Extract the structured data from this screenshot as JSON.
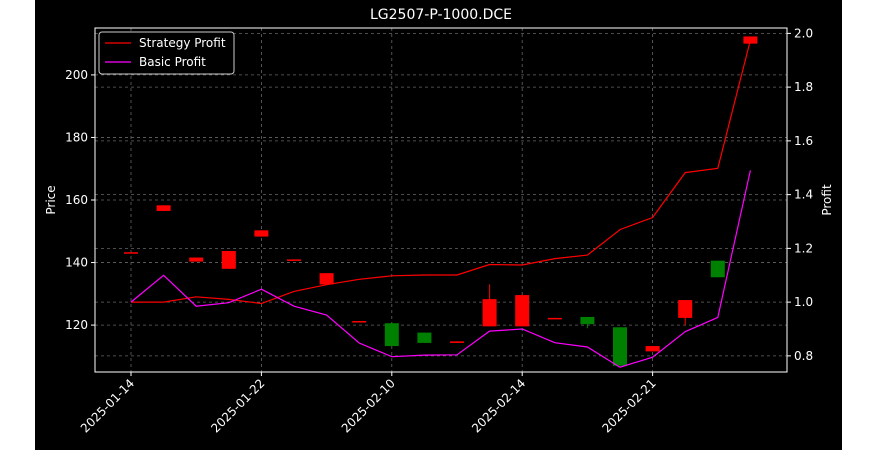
{
  "chart_data": {
    "type": "candlestick",
    "title": "LG2507-P-1000.DCE",
    "xlabel": "",
    "ylabel": "Price",
    "y2label": "Profit",
    "ylim": [
      105,
      215
    ],
    "y2lim": [
      0.74,
      2.02
    ],
    "yticks": [
      120,
      140,
      160,
      180,
      200
    ],
    "y2ticks": [
      0.8,
      1.0,
      1.2,
      1.4,
      1.6,
      1.8,
      2.0
    ],
    "xticks": [
      "2025-01-14",
      "2025-01-22",
      "2025-02-10",
      "2025-02-14",
      "2025-02-21"
    ],
    "grid": true,
    "legend_position": "top-left",
    "colors": {
      "background": "#000000",
      "up_candle": "#008000",
      "down_candle": "#ff0000",
      "strategy_line": "#ff0000",
      "basic_line": "#ff00ff",
      "grid": "#666666",
      "text": "#ffffff"
    },
    "candles": [
      {
        "index": 0,
        "open": 143.3,
        "close": 143.0,
        "high": 143.3,
        "low": 143.0
      },
      {
        "index": 1,
        "open": 158.3,
        "close": 156.5,
        "high": 158.3,
        "low": 156.5
      },
      {
        "index": 2,
        "open": 141.6,
        "close": 140.3,
        "high": 141.6,
        "low": 140.3
      },
      {
        "index": 3,
        "open": 143.7,
        "close": 138.0,
        "high": 143.7,
        "low": 138.0
      },
      {
        "index": 4,
        "open": 150.3,
        "close": 148.3,
        "high": 150.3,
        "low": 148.3
      },
      {
        "index": 5,
        "open": 141.0,
        "close": 140.6,
        "high": 141.0,
        "low": 140.6
      },
      {
        "index": 6,
        "open": 136.6,
        "close": 133.0,
        "high": 136.6,
        "low": 133.0
      },
      {
        "index": 7,
        "open": 121.3,
        "close": 121.0,
        "high": 121.3,
        "low": 121.0
      },
      {
        "index": 8,
        "open": 113.3,
        "close": 120.6,
        "high": 120.6,
        "low": 113.3
      },
      {
        "index": 9,
        "open": 114.3,
        "close": 117.6,
        "high": 117.6,
        "low": 114.3
      },
      {
        "index": 10,
        "open": 114.8,
        "close": 114.3,
        "high": 114.8,
        "low": 114.3
      },
      {
        "index": 11,
        "open": 128.3,
        "close": 119.6,
        "high": 133.0,
        "low": 119.6
      },
      {
        "index": 12,
        "open": 129.6,
        "close": 119.6,
        "high": 129.6,
        "low": 119.6
      },
      {
        "index": 13,
        "open": 122.3,
        "close": 122.0,
        "high": 122.3,
        "low": 122.0
      },
      {
        "index": 14,
        "open": 120.3,
        "close": 122.6,
        "high": 122.6,
        "low": 119.0
      },
      {
        "index": 15,
        "open": 107.0,
        "close": 119.3,
        "high": 119.3,
        "low": 107.0
      },
      {
        "index": 16,
        "open": 113.3,
        "close": 111.6,
        "high": 113.3,
        "low": 111.6
      },
      {
        "index": 17,
        "open": 128.0,
        "close": 122.3,
        "high": 128.0,
        "low": 120.0
      },
      {
        "index": 18,
        "open": 135.3,
        "close": 140.6,
        "high": 140.6,
        "low": 135.3
      },
      {
        "index": 19,
        "open": 212.3,
        "close": 210.0,
        "high": 212.3,
        "low": 210.0
      }
    ],
    "series": [
      {
        "name": "Strategy Profit",
        "axis": "right",
        "x": [
          0,
          1,
          2,
          3,
          4,
          5,
          6,
          7,
          8,
          9,
          10,
          11,
          12,
          13,
          14,
          15,
          16,
          17,
          18,
          19
        ],
        "values": [
          1.0,
          1.0,
          1.02,
          1.01,
          0.995,
          1.04,
          1.065,
          1.085,
          1.098,
          1.101,
          1.101,
          1.14,
          1.138,
          1.162,
          1.175,
          1.27,
          1.315,
          1.482,
          1.498,
          1.975
        ]
      },
      {
        "name": "Basic Profit",
        "axis": "right",
        "x": [
          0,
          1,
          2,
          3,
          4,
          5,
          6,
          7,
          8,
          9,
          10,
          11,
          12,
          13,
          14,
          15,
          16,
          17,
          18,
          19
        ],
        "values": [
          1.0,
          1.1,
          0.985,
          0.998,
          1.048,
          0.985,
          0.952,
          0.848,
          0.797,
          0.803,
          0.804,
          0.892,
          0.9,
          0.849,
          0.833,
          0.758,
          0.795,
          0.89,
          0.943,
          1.49
        ]
      }
    ]
  }
}
